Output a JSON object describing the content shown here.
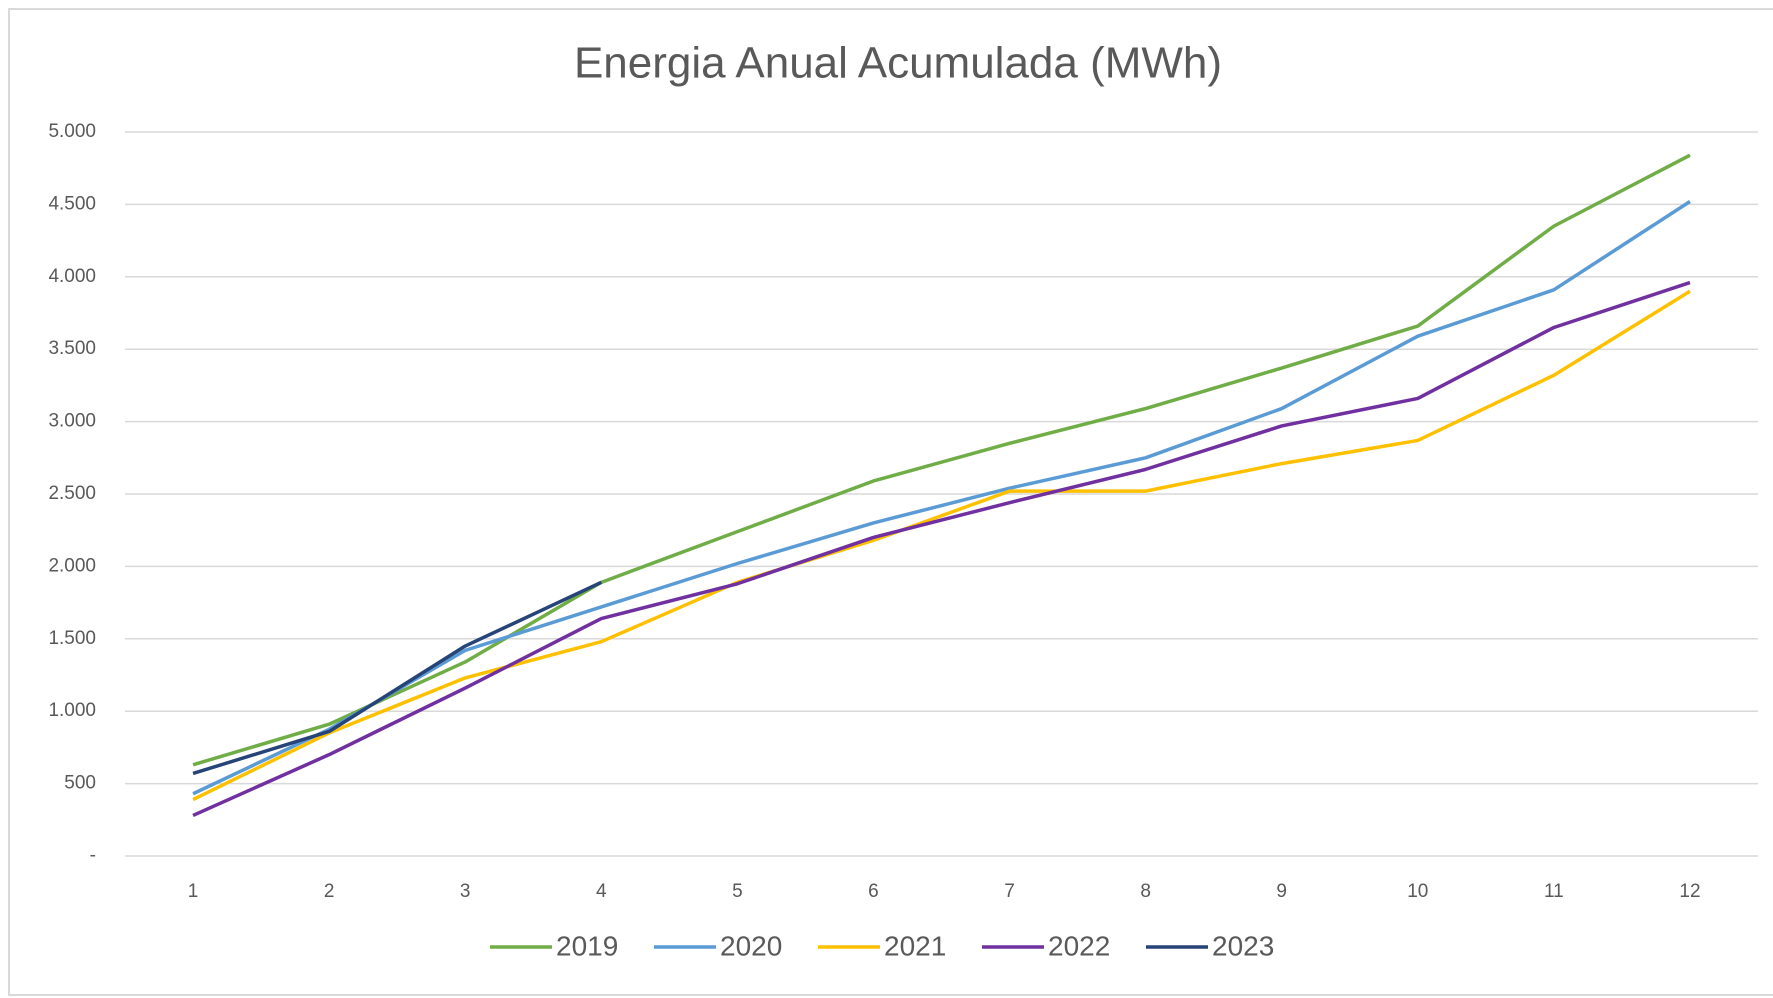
{
  "chart_data": {
    "type": "line",
    "title": "Energia Anual Acumulada (MWh)",
    "categories": [
      "1",
      "2",
      "3",
      "4",
      "5",
      "6",
      "7",
      "8",
      "9",
      "10",
      "11",
      "12"
    ],
    "series": [
      {
        "name": "2019",
        "color": "#70ad47",
        "values": [
          630,
          910,
          1340,
          1890,
          2240,
          2590,
          2850,
          3090,
          3370,
          3660,
          4350,
          4840
        ]
      },
      {
        "name": "2020",
        "color": "#5b9bd5",
        "values": [
          430,
          875,
          1420,
          1720,
          2020,
          2300,
          2540,
          2750,
          3090,
          3590,
          3910,
          4520
        ]
      },
      {
        "name": "2021",
        "color": "#ffc000",
        "values": [
          390,
          850,
          1230,
          1480,
          1890,
          2180,
          2520,
          2520,
          2710,
          2870,
          3320,
          3900
        ]
      },
      {
        "name": "2022",
        "color": "#7030a0",
        "values": [
          280,
          700,
          1160,
          1640,
          1880,
          2200,
          2440,
          2670,
          2970,
          3160,
          3650,
          3960
        ]
      },
      {
        "name": "2023",
        "color": "#264478",
        "values": [
          570,
          860,
          1450,
          1890,
          null,
          null,
          null,
          null,
          null,
          null,
          null,
          null
        ]
      }
    ],
    "ylim": [
      0,
      5000
    ],
    "yticks": [
      {
        "value": 0,
        "label": "-"
      },
      500,
      {
        "value": 1000,
        "label": "1.000"
      },
      {
        "value": 1500,
        "label": "1.500"
      },
      {
        "value": 2000,
        "label": "2.000"
      },
      {
        "value": 2500,
        "label": "2.500"
      },
      {
        "value": 3000,
        "label": "3.000"
      },
      {
        "value": 3500,
        "label": "3.500"
      },
      {
        "value": 4000,
        "label": "4.000"
      },
      {
        "value": 4500,
        "label": "4.500"
      },
      {
        "value": 5000,
        "label": "5.000"
      }
    ],
    "grid": true,
    "legend": "bottom"
  }
}
